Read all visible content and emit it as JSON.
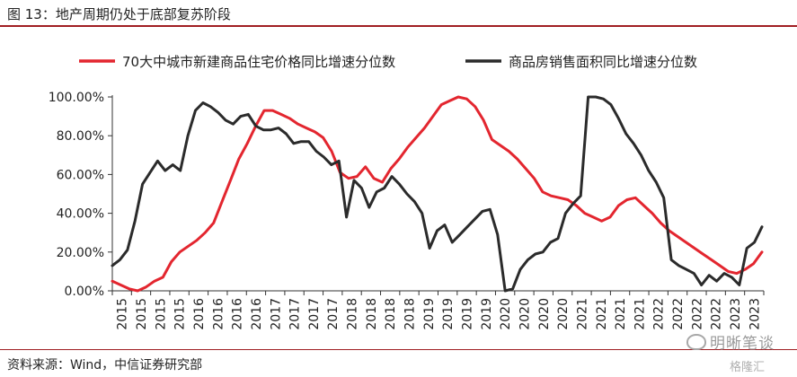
{
  "figure": {
    "title": "图 13：地产周期仍处于底部复苏阶段",
    "source": "资料来源：Wind，中信证券研究部",
    "watermark": "明晰笔谈",
    "watermark_sub": "格隆汇"
  },
  "chart_data": {
    "type": "line",
    "title": "",
    "xlabel": "",
    "ylabel": "",
    "ylim": [
      0,
      100
    ],
    "y_ticks": [
      "0.00%",
      "20.00%",
      "40.00%",
      "60.00%",
      "80.00%",
      "100.00%"
    ],
    "x_tick_labels": [
      "2015",
      "2015",
      "2015",
      "2015",
      "2016",
      "2016",
      "2016",
      "2016",
      "2017",
      "2017",
      "2017",
      "2017",
      "2018",
      "2018",
      "2018",
      "2018",
      "2019",
      "2019",
      "2019",
      "2019",
      "2020",
      "2020",
      "2020",
      "2020",
      "2021",
      "2021",
      "2021",
      "2021",
      "2022",
      "2022",
      "2022",
      "2022",
      "2023",
      "2023"
    ],
    "legend_position": "top",
    "grid": false,
    "colors": {
      "series1": "#e3262f",
      "series2": "#2b2b2b"
    },
    "series": [
      {
        "name": "70大中城市新建商品住宅价格同比增速分位数",
        "color": "#e3262f",
        "values": [
          5,
          3,
          1,
          0,
          2,
          5,
          7,
          15,
          20,
          23,
          26,
          30,
          35,
          46,
          57,
          68,
          76,
          85,
          93,
          93,
          91,
          89,
          86,
          84,
          82,
          79,
          72,
          61,
          58,
          59,
          64,
          58,
          56,
          63,
          68,
          74,
          79,
          84,
          90,
          96,
          98,
          100,
          99,
          95,
          88,
          78,
          75,
          72,
          68,
          63,
          58,
          51,
          49,
          48,
          47,
          44,
          40,
          38,
          36,
          38,
          44,
          47,
          48,
          44,
          40,
          35,
          31,
          28,
          25,
          22,
          19,
          16,
          13,
          10,
          9,
          11,
          14,
          20
        ]
      },
      {
        "name": "商品房销售面积同比增速分位数",
        "color": "#2b2b2b",
        "values": [
          13,
          16,
          21,
          36,
          55,
          61,
          67,
          62,
          65,
          62,
          80,
          93,
          97,
          95,
          92,
          88,
          86,
          90,
          91,
          85,
          83,
          83,
          84,
          81,
          76,
          77,
          77,
          72,
          69,
          65,
          67,
          38,
          57,
          53,
          43,
          51,
          53,
          59,
          55,
          50,
          46,
          40,
          22,
          31,
          34,
          25,
          29,
          33,
          37,
          41,
          42,
          29,
          0,
          1,
          11,
          16,
          19,
          20,
          25,
          27,
          40,
          45,
          49,
          100,
          100,
          99,
          96,
          89,
          81,
          76,
          70,
          62,
          56,
          48,
          16,
          13,
          11,
          9,
          3,
          8,
          5,
          9,
          7,
          3,
          22,
          25,
          33
        ]
      }
    ]
  }
}
